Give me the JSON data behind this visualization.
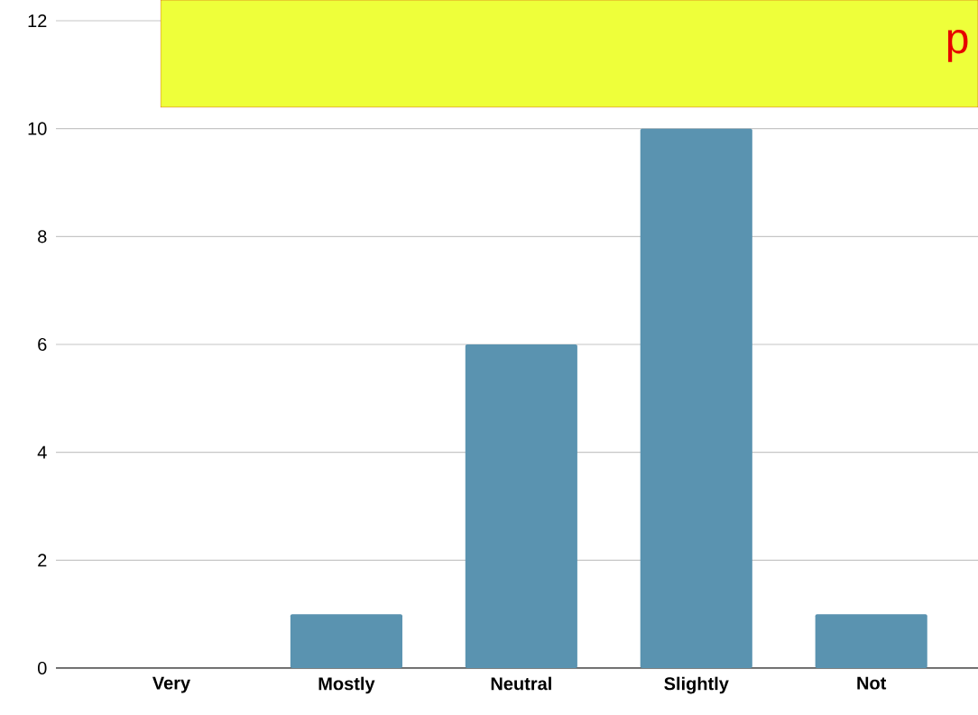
{
  "chart_data": {
    "type": "bar",
    "categories": [
      "Very",
      "Mostly",
      "Neutral",
      "Slightly",
      "Not"
    ],
    "values": [
      0,
      1,
      6,
      10,
      1
    ],
    "color": "#5a93b0",
    "ylim": [
      0,
      12
    ],
    "yticks": [
      0,
      2,
      4,
      6,
      8,
      10,
      12
    ],
    "grid": "y",
    "annotations": [
      "p"
    ]
  }
}
